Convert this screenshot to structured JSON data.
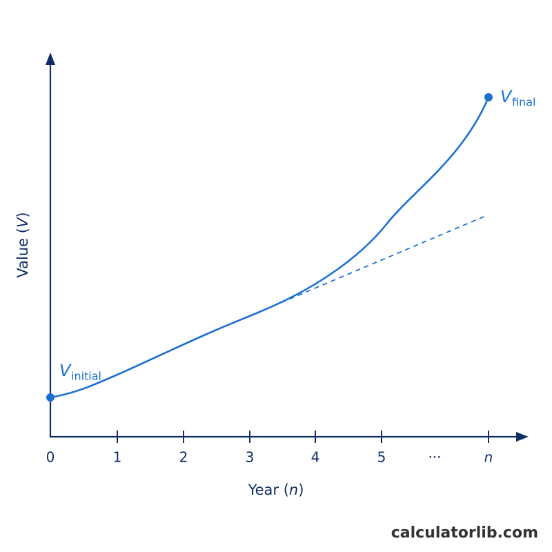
{
  "chart_data": {
    "type": "concept-curve",
    "x_label": [
      "Year (",
      "n",
      ")"
    ],
    "y_label": [
      "Value (",
      "V",
      ")"
    ],
    "categories": [
      "0",
      "1",
      "2",
      "3",
      "4",
      "5",
      "···",
      "n"
    ],
    "start_label": {
      "symbol": "V",
      "subscript": "initial"
    },
    "end_label": {
      "symbol": "V",
      "subscript": "final"
    },
    "watermark": "calculatorlib.com"
  }
}
